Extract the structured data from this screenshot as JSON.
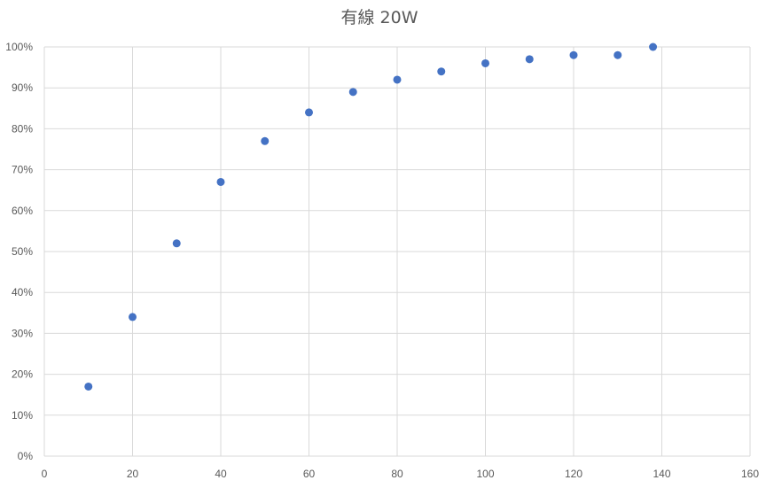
{
  "chart_data": {
    "type": "scatter",
    "title": "有線 20W",
    "xlabel": "",
    "ylabel": "",
    "xlim": [
      0,
      160
    ],
    "ylim": [
      0,
      1
    ],
    "x_ticks": [
      0,
      20,
      40,
      60,
      80,
      100,
      120,
      140,
      160
    ],
    "x_tick_labels": [
      "0",
      "20",
      "40",
      "60",
      "80",
      "100",
      "120",
      "140",
      "160"
    ],
    "y_ticks": [
      0,
      0.1,
      0.2,
      0.3,
      0.4,
      0.5,
      0.6,
      0.7,
      0.8,
      0.9,
      1.0
    ],
    "y_tick_labels": [
      "0%",
      "10%",
      "20%",
      "30%",
      "40%",
      "50%",
      "60%",
      "70%",
      "80%",
      "90%",
      "100%"
    ],
    "grid": true,
    "legend": "none",
    "series": [
      {
        "color": "#4472c4",
        "x": [
          10,
          20,
          30,
          40,
          50,
          60,
          70,
          80,
          90,
          100,
          110,
          120,
          130,
          138
        ],
        "y": [
          0.17,
          0.34,
          0.52,
          0.67,
          0.77,
          0.84,
          0.89,
          0.92,
          0.94,
          0.96,
          0.97,
          0.98,
          0.98,
          1.0
        ]
      }
    ]
  }
}
